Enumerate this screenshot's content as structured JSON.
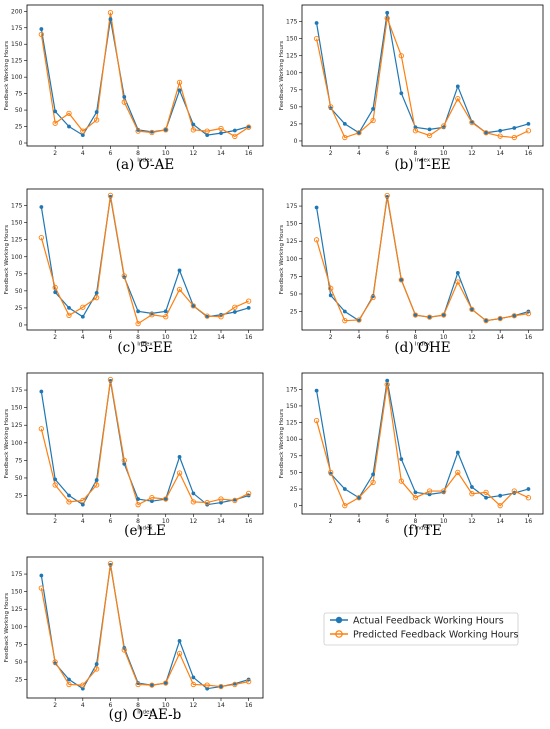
{
  "chart_data": {
    "type": "line",
    "legend": {
      "placement": "bottom-right",
      "entries": [
        "Actual Feedback Working Hours",
        "Predicted Feedback Working Hours"
      ]
    },
    "colors": {
      "actual": "#1f77b4",
      "predicted": "#ff7f0e"
    },
    "xlabel": "Index",
    "ylabel": "Feedback Working Hours",
    "x": [
      1,
      2,
      3,
      4,
      5,
      6,
      7,
      8,
      9,
      10,
      11,
      12,
      13,
      14,
      15,
      16
    ],
    "xticks": [
      2,
      4,
      6,
      8,
      10,
      12,
      14,
      16
    ],
    "actual": [
      173,
      48,
      25,
      12,
      47,
      188,
      70,
      20,
      17,
      20,
      80,
      28,
      12,
      15,
      19,
      25
    ],
    "panels": [
      {
        "caption": "(a) O-AE",
        "ylim": [
          0,
          205
        ],
        "yticks": [
          0,
          25,
          50,
          75,
          100,
          125,
          150,
          175,
          200
        ],
        "predicted": [
          165,
          30,
          45,
          18,
          35,
          198,
          62,
          18,
          16,
          20,
          92,
          20,
          18,
          22,
          10,
          24
        ]
      },
      {
        "caption": "(b) 1-EE",
        "ylim": [
          -3,
          195
        ],
        "yticks": [
          0,
          25,
          50,
          75,
          100,
          125,
          150,
          175
        ],
        "predicted": [
          150,
          50,
          5,
          12,
          30,
          180,
          125,
          15,
          8,
          22,
          62,
          27,
          12,
          7,
          5,
          15
        ]
      },
      {
        "caption": "(c) 5-EE",
        "ylim": [
          -3,
          195
        ],
        "yticks": [
          0,
          25,
          50,
          75,
          100,
          125,
          150,
          175
        ],
        "predicted": [
          128,
          55,
          14,
          26,
          40,
          190,
          72,
          2,
          15,
          12,
          52,
          28,
          13,
          12,
          26,
          35
        ]
      },
      {
        "caption": "(d) OHE",
        "ylim": [
          3,
          195
        ],
        "yticks": [
          25,
          50,
          75,
          100,
          125,
          150,
          175
        ],
        "predicted": [
          127,
          58,
          12,
          13,
          45,
          190,
          70,
          20,
          17,
          20,
          67,
          28,
          12,
          15,
          19,
          22
        ]
      },
      {
        "caption": "(e) LE",
        "ylim": [
          3,
          195
        ],
        "yticks": [
          25,
          50,
          75,
          100,
          125,
          150,
          175
        ],
        "predicted": [
          120,
          40,
          16,
          18,
          40,
          190,
          75,
          12,
          22,
          20,
          57,
          16,
          15,
          20,
          18,
          28
        ]
      },
      {
        "caption": "(f) TE",
        "ylim": [
          -8,
          195
        ],
        "yticks": [
          0,
          25,
          50,
          75,
          100,
          125,
          150,
          175
        ],
        "predicted": [
          128,
          50,
          0,
          12,
          35,
          182,
          37,
          12,
          22,
          22,
          50,
          18,
          20,
          0,
          22,
          12
        ]
      },
      {
        "caption": "(g) O-AE-b",
        "ylim": [
          3,
          195
        ],
        "yticks": [
          25,
          50,
          75,
          100,
          125,
          150,
          175
        ],
        "predicted": [
          155,
          50,
          18,
          17,
          40,
          190,
          67,
          18,
          17,
          20,
          62,
          18,
          17,
          15,
          18,
          22
        ]
      }
    ]
  }
}
